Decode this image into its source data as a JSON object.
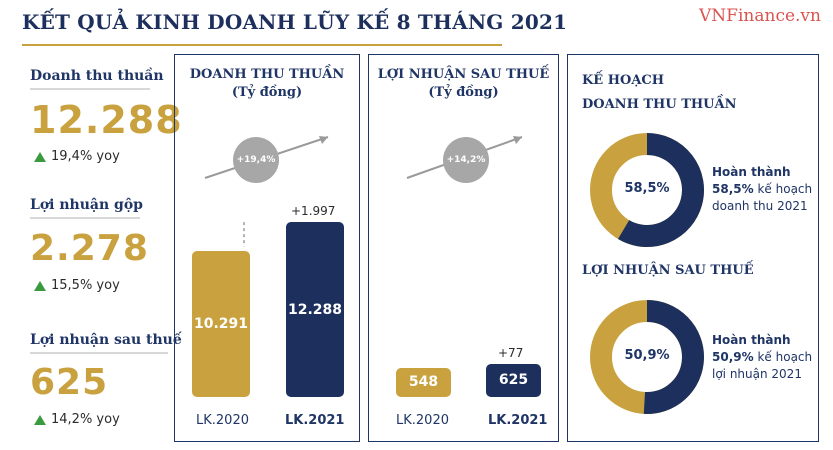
{
  "header": {
    "title": "KẾT QUẢ KINH DOANH LŨY KẾ 8 THÁNG 2021",
    "watermark": "VNFinance.vn"
  },
  "kpis": [
    {
      "label": "Doanh thu thuần",
      "value": "12.288",
      "growth": "19,4% yoy"
    },
    {
      "label": "Lợi nhuận gộp",
      "value": "2.278",
      "growth": "15,5% yoy"
    },
    {
      "label": "Lợi nhuận sau thuế",
      "value": "625",
      "growth": "14,2% yoy"
    }
  ],
  "colors": {
    "gold": "#c9a23f",
    "navy": "#1d2f5c",
    "grey": "#a7a7a7",
    "up": "#3a9a3f"
  },
  "chart_data": [
    {
      "type": "bar",
      "title": "DOANH THU THUẦN",
      "subtitle": "(Tỷ đồng)",
      "categories": [
        "LK.2020",
        "LK.2021"
      ],
      "values": [
        10291,
        12288
      ],
      "value_labels": [
        "10.291",
        "12.288"
      ],
      "delta_label": "+1.997",
      "growth_label": "+19,4%",
      "ylim": [
        0,
        13000
      ]
    },
    {
      "type": "bar",
      "title": "LỢI NHUẬN SAU THUẾ",
      "subtitle": "(Tỷ đồng)",
      "categories": [
        "LK.2020",
        "LK.2021"
      ],
      "values": [
        548,
        625
      ],
      "value_labels": [
        "548",
        "625"
      ],
      "delta_label": "+77",
      "growth_label": "+14,2%",
      "ylim": [
        0,
        1500
      ]
    },
    {
      "type": "pie",
      "title": "DOANH THU THUẦN",
      "percent": 58.5,
      "center_label": "58,5%",
      "note_prefix": "Hoàn thành",
      "note_percent": "58,5%",
      "note_rest_1": "kế hoạch",
      "note_rest_2": "doanh thu 2021"
    },
    {
      "type": "pie",
      "title": "LỢI NHUẬN SAU THUẾ",
      "percent": 50.9,
      "center_label": "50,9%",
      "note_prefix": "Hoàn thành",
      "note_percent": "50,9%",
      "note_rest_1": "kế hoạch",
      "note_rest_2": "lợi nhuận 2021"
    }
  ],
  "plan": {
    "heading": "KẾ HOẠCH"
  }
}
